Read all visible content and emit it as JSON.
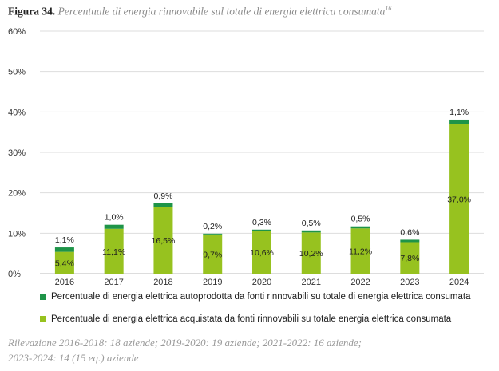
{
  "figure": {
    "label": "Figura 34.",
    "caption": "Percentuale di energia rinnovabile sul totale di energia elettrica consumata",
    "footnote_ref": "16"
  },
  "colors": {
    "self_produced": "#1e9448",
    "purchased": "#97c21f",
    "grid": "#dddddd",
    "axis_text": "#333333"
  },
  "chart_data": {
    "type": "bar",
    "stacked": true,
    "categories": [
      "2016",
      "2017",
      "2018",
      "2019",
      "2020",
      "2021",
      "2022",
      "2023",
      "2024"
    ],
    "series": [
      {
        "name": "Percentuale di energia elettrica acquistata da fonti rinnovabili su totale energia elettrica consumata",
        "color_key": "purchased",
        "values": [
          5.4,
          11.1,
          16.5,
          9.7,
          10.6,
          10.2,
          11.2,
          7.8,
          37.0
        ],
        "labels": [
          "5,4%",
          "11,1%",
          "16,5%",
          "9,7%",
          "10,6%",
          "10,2%",
          "11,2%",
          "7,8%",
          "37,0%"
        ]
      },
      {
        "name": "Percentuale di energia elettrica autoprodotta da fonti rinnovabili su totale di energia elettrica consumata",
        "color_key": "self_produced",
        "values": [
          1.1,
          1.0,
          0.9,
          0.2,
          0.3,
          0.5,
          0.5,
          0.6,
          1.1
        ],
        "labels": [
          "1,1%",
          "1,0%",
          "0,9%",
          "0,2%",
          "0,3%",
          "0,5%",
          "0,5%",
          "0,6%",
          "1,1%"
        ]
      }
    ],
    "ylim": [
      0,
      60
    ],
    "yticks": [
      0,
      10,
      20,
      30,
      40,
      50,
      60
    ],
    "ytick_labels": [
      "0%",
      "10%",
      "20%",
      "30%",
      "40%",
      "50%",
      "60%"
    ],
    "grid": true,
    "legend_position": "bottom",
    "legend": [
      "Percentuale di energia elettrica autoprodotta da fonti rinnovabili su totale di energia elettrica consumata",
      "Percentuale di energia elettrica acquistata da fonti rinnovabili su totale energia elettrica consumata"
    ]
  },
  "note": {
    "line1": "Rilevazione 2016-2018: 18 aziende; 2019-2020: 19 aziende; 2021-2022: 16 aziende;",
    "line2": "2023-2024: 14 (15 eq.) aziende"
  }
}
